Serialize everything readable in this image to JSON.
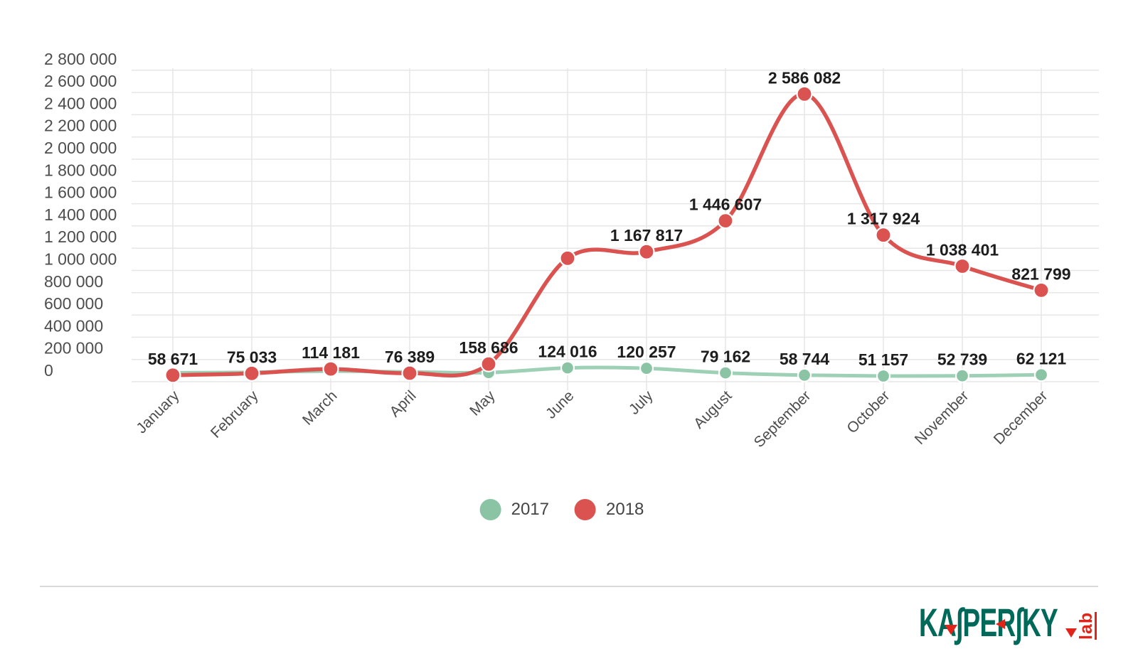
{
  "chart_data": {
    "type": "line",
    "title": "",
    "xlabel": "",
    "ylabel": "",
    "grid": true,
    "legend_position": "bottom",
    "categories": [
      "January",
      "February",
      "March",
      "April",
      "May",
      "June",
      "July",
      "August",
      "September",
      "October",
      "November",
      "December"
    ],
    "y_axis": {
      "min": 0,
      "max": 2800000,
      "step": 200000,
      "tick_labels": [
        "0",
        "200 000",
        "400 000",
        "600 000",
        "800 000",
        "1 000 000",
        "1 200 000",
        "1 400 000",
        "1 600 000",
        "1 800 000",
        "2 000 000",
        "2 200 000",
        "2 400 000",
        "2 600 000",
        "2 800 000"
      ]
    },
    "series": [
      {
        "name": "2017",
        "color": "#8bc4a4",
        "line_color": "#9ed0b5",
        "values": [
          80000,
          85000,
          95000,
          88000,
          82000,
          124016,
          120257,
          79162,
          58744,
          51157,
          52739,
          62121
        ],
        "data_labels": [
          null,
          null,
          null,
          null,
          null,
          "124 016",
          "120 257",
          "79 162",
          "58 744",
          "51 157",
          "52 739",
          "62 121"
        ]
      },
      {
        "name": "2018",
        "color": "#da5350",
        "line_color": "#da5350",
        "values": [
          58671,
          75033,
          114181,
          76389,
          158686,
          1110000,
          1167817,
          1446607,
          2586082,
          1317924,
          1038401,
          821799
        ],
        "data_labels": [
          "58 671",
          "75 033",
          "114 181",
          "76 389",
          "158 686",
          null,
          "1 167 817",
          "1 446 607",
          "2 586 082",
          "1 317 924",
          "1 038 401",
          "821 799"
        ]
      }
    ],
    "unlabeled_points_estimated": true,
    "grid_color": "#e6e6e6",
    "axis_label_color": "#4d4d4d",
    "value_label_color": "#1d1d1d"
  },
  "legend": {
    "items": [
      {
        "label": "2017",
        "color": "#8bc4a4"
      },
      {
        "label": "2018",
        "color": "#da5350"
      }
    ]
  },
  "footer": {
    "logo": {
      "wordmark": "KASPERSKY",
      "wordmark_display": "KA∫PER∫KY",
      "lab": "lab",
      "green": "#00695a",
      "red": "#e2231a"
    }
  }
}
